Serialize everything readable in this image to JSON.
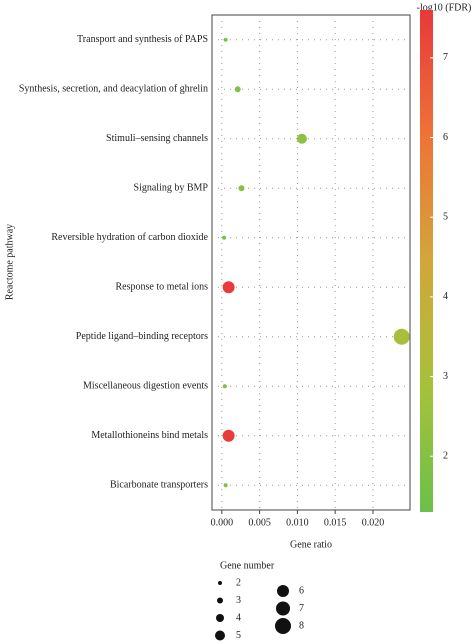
{
  "chart_data": {
    "type": "bubble",
    "y_label": "Reactome pathway",
    "x_label": "Gene ratio",
    "categories": [
      "Transport and synthesis of PAPS",
      "Synthesis, secretion, and deacylation of ghrelin",
      "Stimuli–sensing channels",
      "Signaling by BMP",
      "Reversible hydration of carbon dioxide",
      "Response to metal ions",
      "Peptide ligand–binding receptors",
      "Miscellaneous digestion events",
      "Metallothioneins bind metals",
      "Bicarbonate transporters"
    ],
    "x": [
      0.0005,
      0.0021,
      0.0106,
      0.0026,
      0.0003,
      0.0009,
      0.0238,
      0.0004,
      0.0009,
      0.0005
    ],
    "size": [
      2,
      3,
      5,
      3,
      2,
      6,
      8,
      2,
      6,
      2
    ],
    "color_values": [
      1.8,
      1.9,
      2.2,
      2.0,
      1.8,
      7.5,
      3.0,
      1.8,
      7.5,
      1.8
    ],
    "xlim": [
      -0.0013,
      0.0249
    ],
    "xticks": [
      {
        "value": 0,
        "label": "0.000"
      },
      {
        "value": 0.005,
        "label": "0.005"
      },
      {
        "value": 0.01,
        "label": "0.010"
      },
      {
        "value": 0.015,
        "label": "0.015"
      },
      {
        "value": 0.02,
        "label": "0.020"
      }
    ],
    "grid": true,
    "colorbar": {
      "title": "-log10 (FDR)",
      "lim": [
        1.3,
        7.6
      ],
      "ticks": [
        2,
        3,
        4,
        5,
        6,
        7
      ],
      "colors": [
        "#6cc04a",
        "#a6c13c",
        "#d2a63a",
        "#ee7338",
        "#e8383a"
      ]
    },
    "size_legend": {
      "title": "Gene number",
      "values": [
        2,
        3,
        4,
        5,
        6,
        7,
        8
      ]
    }
  }
}
